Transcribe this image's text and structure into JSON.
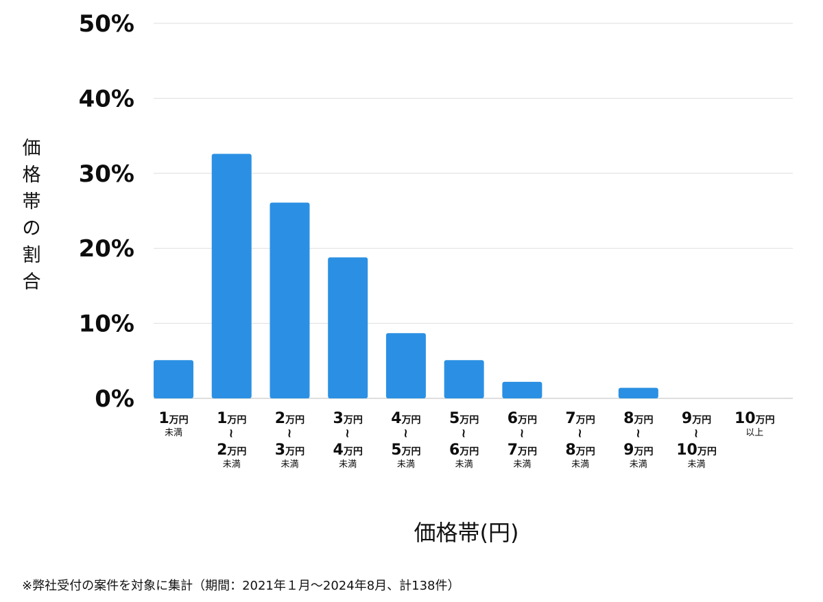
{
  "chart_data": {
    "type": "bar",
    "xlabel": "価格帯(円)",
    "ylabel": "価格帯の割合",
    "ylim": [
      0,
      50
    ],
    "yticks": [
      "0%",
      "10%",
      "20%",
      "30%",
      "40%",
      "50%"
    ],
    "grid": true,
    "bar_color": "#2b90e3",
    "categories": [
      {
        "lines": [
          {
            "num": "1",
            "unit": "万円"
          }
        ],
        "suffix": "未満"
      },
      {
        "lines": [
          {
            "num": "1",
            "unit": "万円"
          },
          {
            "wave": "~"
          },
          {
            "num": "2",
            "unit": "万円"
          }
        ],
        "suffix": "未満"
      },
      {
        "lines": [
          {
            "num": "2",
            "unit": "万円"
          },
          {
            "wave": "~"
          },
          {
            "num": "3",
            "unit": "万円"
          }
        ],
        "suffix": "未満"
      },
      {
        "lines": [
          {
            "num": "3",
            "unit": "万円"
          },
          {
            "wave": "~"
          },
          {
            "num": "4",
            "unit": "万円"
          }
        ],
        "suffix": "未満"
      },
      {
        "lines": [
          {
            "num": "4",
            "unit": "万円"
          },
          {
            "wave": "~"
          },
          {
            "num": "5",
            "unit": "万円"
          }
        ],
        "suffix": "未満"
      },
      {
        "lines": [
          {
            "num": "5",
            "unit": "万円"
          },
          {
            "wave": "~"
          },
          {
            "num": "6",
            "unit": "万円"
          }
        ],
        "suffix": "未満"
      },
      {
        "lines": [
          {
            "num": "6",
            "unit": "万円"
          },
          {
            "wave": "~"
          },
          {
            "num": "7",
            "unit": "万円"
          }
        ],
        "suffix": "未満"
      },
      {
        "lines": [
          {
            "num": "7",
            "unit": "万円"
          },
          {
            "wave": "~"
          },
          {
            "num": "8",
            "unit": "万円"
          }
        ],
        "suffix": "未満"
      },
      {
        "lines": [
          {
            "num": "8",
            "unit": "万円"
          },
          {
            "wave": "~"
          },
          {
            "num": "9",
            "unit": "万円"
          }
        ],
        "suffix": "未満"
      },
      {
        "lines": [
          {
            "num": "9",
            "unit": "万円"
          },
          {
            "wave": "~"
          },
          {
            "num": "10",
            "unit": "万円"
          }
        ],
        "suffix": "未満"
      },
      {
        "lines": [
          {
            "num": "10",
            "unit": "万円"
          }
        ],
        "suffix": "以上"
      }
    ],
    "values": [
      5.1,
      32.6,
      26.1,
      18.8,
      8.7,
      5.1,
      2.2,
      0,
      1.4,
      0,
      0
    ]
  },
  "footnote": "※弊社受付の案件を対象に集計（期間：2021年１月〜2024年8月、計138件）"
}
